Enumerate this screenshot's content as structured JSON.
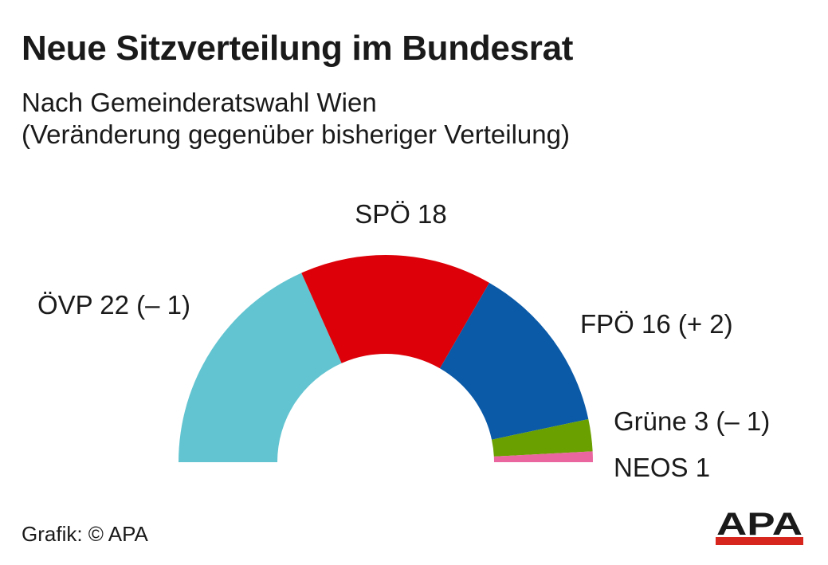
{
  "title": "Neue Sitzverteilung im Bundesrat",
  "subtitle_line1": "Nach Gemeinderatswahl Wien",
  "subtitle_line2": "(Veränderung gegenüber bisheriger Verteilung)",
  "source": "Grafik: © APA",
  "logo": {
    "text": "APA",
    "accent_color": "#d7261e"
  },
  "chart_data": {
    "type": "pie",
    "variant": "half-donut (parliament)",
    "total": 60,
    "series": [
      {
        "name": "ÖVP",
        "value": 22,
        "label": "ÖVP 22 (– 1)",
        "color": "#62c4d0"
      },
      {
        "name": "SPÖ",
        "value": 18,
        "label": "SPÖ 18",
        "color": "#dd0008"
      },
      {
        "name": "FPÖ",
        "value": 16,
        "label": "FPÖ 16 (+ 2)",
        "color": "#0a5aa8"
      },
      {
        "name": "Grüne",
        "value": 3,
        "label": "Grüne 3 (– 1)",
        "color": "#6aa000"
      },
      {
        "name": "NEOS",
        "value": 1,
        "label": "NEOS 1",
        "color": "#e9679e"
      }
    ]
  }
}
